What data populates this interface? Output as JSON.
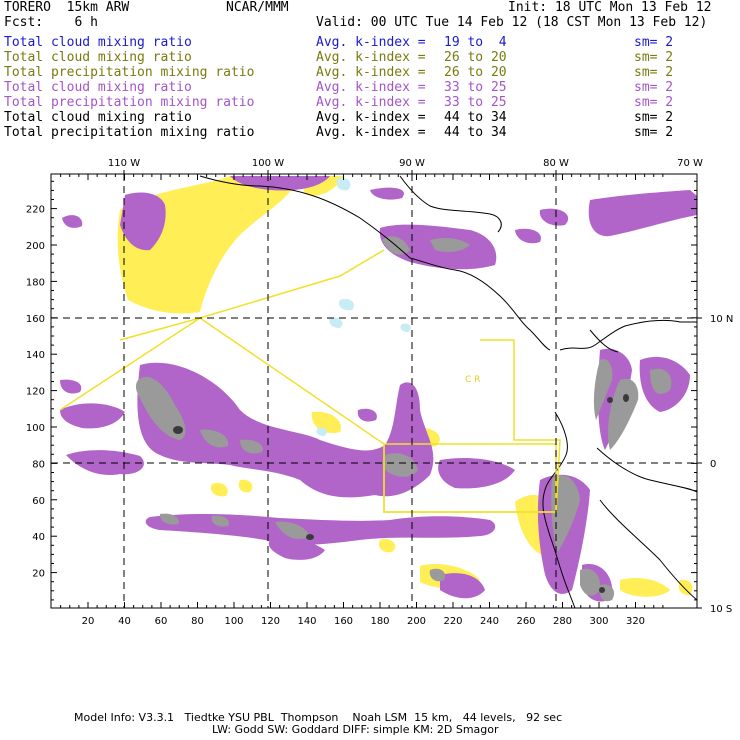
{
  "header": {
    "model": "TORERO  15km ARW",
    "center": "NCAR/MMM",
    "init": "Init: 18 UTC Mon 13 Feb 12",
    "fcst": "Fcst:    6 h",
    "valid": "Valid: 00 UTC Tue 14 Feb 12 (18 CST Mon 13 Feb 12)"
  },
  "fields": [
    {
      "name": "Total cloud mixing ratio",
      "stat": "Avg. k-index =",
      "k": "19 to  4",
      "sm": "sm= 2",
      "color": "#1a1ad0"
    },
    {
      "name": "Total cloud mixing ratio",
      "stat": "Avg. k-index =",
      "k": "26 to 20",
      "sm": "sm= 2",
      "color": "#7a7a10"
    },
    {
      "name": "Total precipitation mixing ratio",
      "stat": "Avg. k-index =",
      "k": "26 to 20",
      "sm": "sm= 2",
      "color": "#7a7a10"
    },
    {
      "name": "Total cloud mixing ratio",
      "stat": "Avg. k-index =",
      "k": "33 to 25",
      "sm": "sm= 2",
      "color": "#a455c8"
    },
    {
      "name": "Total precipitation mixing ratio",
      "stat": "Avg. k-index =",
      "k": "33 to 25",
      "sm": "sm= 2",
      "color": "#a455c8"
    },
    {
      "name": "Total cloud mixing ratio",
      "stat": "Avg. k-index =",
      "k": "44 to 34",
      "sm": "sm= 2",
      "color": "#000000"
    },
    {
      "name": "Total precipitation mixing ratio",
      "stat": "Avg. k-index =",
      "k": "44 to 34",
      "sm": "sm= 2",
      "color": "#000000"
    }
  ],
  "axes": {
    "lon_labels": [
      "110 W",
      "100 W",
      "90 W",
      "80 W",
      "70 W"
    ],
    "lat_labels": [
      "10 N",
      "0",
      "10 S"
    ],
    "x_ticks": [
      "20",
      "40",
      "60",
      "80",
      "100",
      "120",
      "140",
      "160",
      "180",
      "200",
      "220",
      "240",
      "260",
      "280",
      "300",
      "320"
    ],
    "y_ticks": [
      "220",
      "200",
      "180",
      "160",
      "140",
      "120",
      "100",
      "80",
      "60",
      "40",
      "20"
    ]
  },
  "map_labels": {
    "region": "C  R"
  },
  "colors": {
    "yellow": "#ffee55",
    "purple": "#b265c9",
    "gray": "#9a9a9a",
    "dark": "#3a3a3a",
    "cyan": "#c8ecf4",
    "box": "#f0e02a"
  },
  "footer": {
    "line1": "Model Info: V3.3.1   Tiedtke YSU PBL  Thompson    Noah LSM  15 km,   44 levels,   92 sec",
    "line2": "LW: Godd SW: Goddard DIFF: simple KM: 2D Smagor"
  }
}
